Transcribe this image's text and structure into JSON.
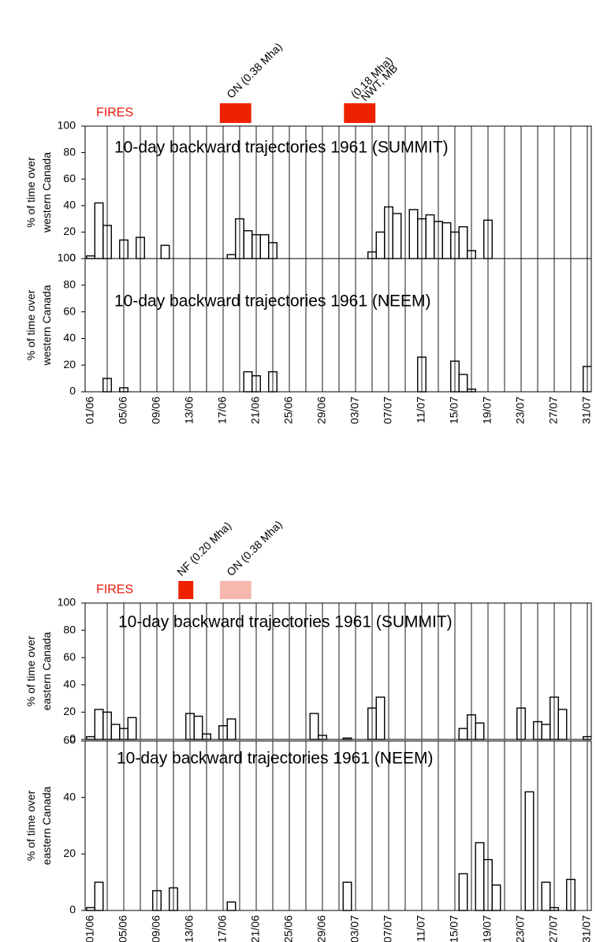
{
  "chart_data": [
    {
      "type": "step",
      "title": "10-day backward trajectories 1961 (SUMMIT)",
      "ylabel": [
        "% of time over",
        "western Canada"
      ],
      "fires_label": "FIRES",
      "fires": [
        {
          "label": [
            "ON (0.38 Mha)"
          ],
          "start": "17/06",
          "end": "20/06",
          "color": "#ee2200"
        },
        {
          "label": [
            "NWT, MB",
            "(0.18 Mha)"
          ],
          "start": "02/07",
          "end": "05/07",
          "color": "#ee2200"
        }
      ],
      "values": [
        2,
        42,
        25,
        0,
        14,
        0,
        16,
        0,
        0,
        10,
        0,
        0,
        0,
        0,
        0,
        0,
        0,
        3,
        30,
        21,
        18,
        18,
        12,
        0,
        0,
        0,
        0,
        0,
        0,
        0,
        0,
        0,
        0,
        0,
        5,
        20,
        39,
        34,
        0,
        37,
        30,
        33,
        28,
        27,
        20,
        24,
        6,
        0,
        29,
        0,
        0,
        0,
        0,
        0,
        0,
        0,
        0,
        0,
        0,
        0,
        0
      ],
      "color": "#000000",
      "ylim": [
        0,
        100
      ],
      "yticks": [
        0,
        20,
        40,
        60,
        80,
        100
      ]
    },
    {
      "type": "step",
      "title": "10-day backward trajectories 1961 (NEEM)",
      "ylabel": [
        "% of time over",
        "western Canada"
      ],
      "categories": [
        "01/06",
        null,
        null,
        null,
        "05/06",
        null,
        null,
        null,
        "09/06",
        null,
        null,
        null,
        "13/06",
        null,
        null,
        null,
        "17/06",
        null,
        null,
        null,
        "21/06",
        null,
        null,
        null,
        "25/06",
        null,
        null,
        null,
        "29/06",
        null,
        null,
        null,
        "03/07",
        null,
        null,
        null,
        "07/07",
        null,
        null,
        null,
        "11/07",
        null,
        null,
        null,
        "15/07",
        null,
        null,
        null,
        "19/07",
        null,
        null,
        null,
        "23/07",
        null,
        null,
        null,
        "27/07",
        null,
        null,
        null,
        "31/07"
      ],
      "values": [
        0,
        0,
        10,
        0,
        3,
        0,
        0,
        0,
        0,
        0,
        0,
        0,
        0,
        0,
        0,
        0,
        0,
        0,
        0,
        15,
        12,
        0,
        15,
        0,
        0,
        0,
        0,
        0,
        0,
        0,
        0,
        0,
        0,
        0,
        0,
        0,
        0,
        0,
        0,
        0,
        26,
        0,
        0,
        0,
        23,
        13,
        2,
        0,
        0,
        0,
        0,
        0,
        0,
        0,
        0,
        0,
        0,
        0,
        0,
        0,
        19
      ],
      "color": "#000000",
      "ylim": [
        0,
        100
      ],
      "yticks": [
        0,
        20,
        40,
        60,
        80,
        100
      ]
    },
    {
      "type": "step",
      "title": "10-day backward trajectories 1961  (SUMMIT)",
      "ylabel": [
        "% of time over",
        "eastern Canada"
      ],
      "fires_label": "FIRES",
      "fires": [
        {
          "label": [
            "NF (0.20 Mha)"
          ],
          "start": "12/06",
          "end": "13/06",
          "color": "#ee2200"
        },
        {
          "label": [
            "ON (0.38 Mha)"
          ],
          "start": "17/06",
          "end": "20/06",
          "color": "#f6b8ac"
        }
      ],
      "values": [
        2,
        22,
        20,
        11,
        8,
        16,
        0,
        0,
        0,
        0,
        0,
        0,
        19,
        17,
        4,
        0,
        10,
        15,
        0,
        0,
        0,
        0,
        0,
        0,
        0,
        0,
        0,
        19,
        3,
        0,
        0,
        1,
        0,
        0,
        23,
        31,
        0,
        0,
        0,
        0,
        0,
        0,
        0,
        0,
        0,
        8,
        18,
        12,
        0,
        0,
        0,
        0,
        23,
        0,
        13,
        11,
        31,
        22,
        0,
        0,
        2
      ],
      "color": "#000000",
      "ylim": [
        0,
        100
      ],
      "yticks": [
        0,
        20,
        40,
        60,
        80,
        100
      ]
    },
    {
      "type": "step",
      "title": "10-day backward trajectories 1961 (NEEM)",
      "ylabel": [
        "% of time over",
        "eastern Canada"
      ],
      "categories": [
        "01/06",
        null,
        null,
        null,
        "05/06",
        null,
        null,
        null,
        "09/06",
        null,
        null,
        null,
        "13/06",
        null,
        null,
        null,
        "17/06",
        null,
        null,
        null,
        "21/06",
        null,
        null,
        null,
        "25/06",
        null,
        null,
        null,
        "29/06",
        null,
        null,
        null,
        "03/07",
        null,
        null,
        null,
        "07/07",
        null,
        null,
        null,
        "11/07",
        null,
        null,
        null,
        "15/07",
        null,
        null,
        null,
        "19/07",
        null,
        null,
        null,
        "23/07",
        null,
        null,
        null,
        "27/07",
        null,
        null,
        null,
        "31/07"
      ],
      "values": [
        1,
        10,
        0,
        0,
        0,
        0,
        0,
        0,
        7,
        0,
        8,
        0,
        0,
        0,
        0,
        0,
        0,
        3,
        0,
        0,
        0,
        0,
        0,
        0,
        0,
        0,
        0,
        0,
        0,
        0,
        0,
        10,
        0,
        0,
        0,
        0,
        0,
        0,
        0,
        0,
        0,
        0,
        0,
        0,
        0,
        13,
        0,
        24,
        18,
        9,
        0,
        0,
        0,
        42,
        0,
        10,
        1,
        0,
        11,
        0,
        0
      ],
      "color": "#000000",
      "ylim": [
        0,
        60
      ],
      "yticks": [
        0,
        20,
        40,
        60
      ]
    }
  ]
}
